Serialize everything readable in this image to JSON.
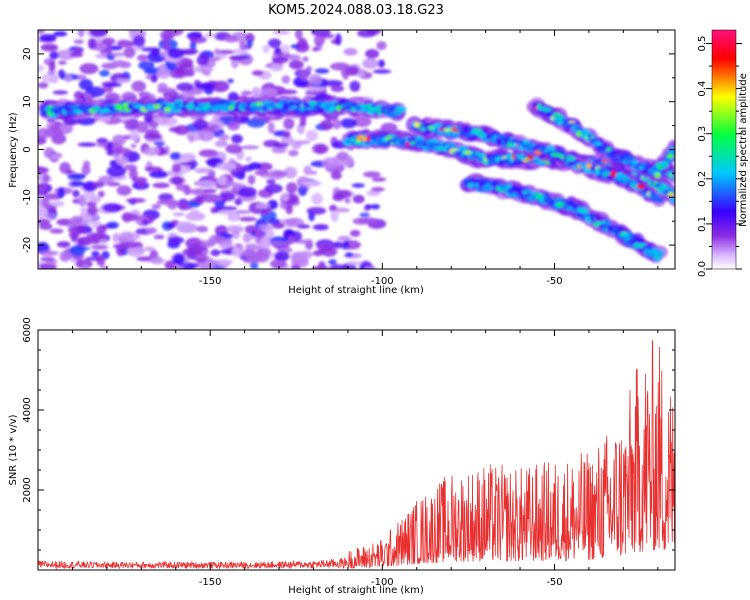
{
  "title": "KOM5.2024.088.03.18.G23",
  "chart_data": [
    {
      "type": "heatmap",
      "title": "KOM5.2024.088.03.18.G23",
      "xlabel": "Height of straight line (km)",
      "ylabel": "Frequency (Hz)",
      "xlim": [
        -200,
        -15
      ],
      "ylim": [
        -25,
        25
      ],
      "xticks": [
        "-150",
        "-100",
        "-50"
      ],
      "xtick_values": [
        -150,
        -100,
        -50
      ],
      "yticks": [
        "20",
        "10",
        "0",
        "-10",
        "-20"
      ],
      "ytick_values": [
        20,
        10,
        0,
        -10,
        -20
      ],
      "colorbar": {
        "label": "Normalized spectral amplitude",
        "ticks": [
          "0.0",
          "0.1",
          "0.2",
          "0.3",
          "0.4",
          "0.5"
        ],
        "tick_values": [
          0.0,
          0.1,
          0.2,
          0.3,
          0.4,
          0.5
        ],
        "range": [
          0.0,
          0.53
        ],
        "colors": [
          "#ffffff",
          "#d8b4ff",
          "#8a2be2",
          "#3a00ff",
          "#00c8ff",
          "#00ff40",
          "#ffff00",
          "#ff0000",
          "#ff1080"
        ]
      },
      "tracks": [
        {
          "x": [
            -198,
            -185,
            -165,
            -145,
            -125,
            -110,
            -100,
            -95
          ],
          "y": [
            8,
            8.5,
            9,
            9,
            9,
            9,
            8,
            8
          ],
          "peak": 0.35
        },
        {
          "x": [
            -110,
            -100,
            -90,
            -80,
            -70,
            -60,
            -50,
            -40,
            -30,
            -20,
            -15
          ],
          "y": [
            2,
            2,
            1.5,
            0,
            -2,
            -2,
            -2,
            -3,
            -3,
            -4,
            -5
          ],
          "peak": 0.53
        },
        {
          "x": [
            -90,
            -80,
            -70,
            -60,
            -50,
            -40,
            -30,
            -20
          ],
          "y": [
            5,
            4,
            3,
            1,
            -1,
            -4,
            -6,
            -10
          ],
          "peak": 0.48
        },
        {
          "x": [
            -75,
            -65,
            -55,
            -45,
            -35,
            -25,
            -20
          ],
          "y": [
            -7,
            -8,
            -10,
            -12,
            -16,
            -20,
            -22
          ],
          "peak": 0.3
        },
        {
          "x": [
            -55,
            -45,
            -35,
            -25,
            -15
          ],
          "y": [
            9,
            5,
            0,
            -5,
            -10
          ],
          "peak": 0.45
        },
        {
          "x": [
            -30,
            -20,
            -15
          ],
          "y": [
            -2,
            -5,
            0
          ],
          "peak": 0.35
        }
      ]
    },
    {
      "type": "line",
      "xlabel": "Height of straight line (km)",
      "ylabel": "SNR (10 * v/v)",
      "xlim": [
        -200,
        -15
      ],
      "ylim": [
        0,
        6000
      ],
      "xticks": [
        "-150",
        "-100",
        "-50"
      ],
      "xtick_values": [
        -150,
        -100,
        -50
      ],
      "yticks": [
        "6000",
        "4000",
        "2000"
      ],
      "ytick_values": [
        6000,
        4000,
        2000
      ],
      "color": "#e83030",
      "envelope": {
        "x": [
          -200,
          -180,
          -160,
          -140,
          -120,
          -110,
          -100,
          -90,
          -80,
          -70,
          -60,
          -50,
          -40,
          -30,
          -25,
          -20,
          -15
        ],
        "y": [
          350,
          300,
          300,
          300,
          350,
          500,
          800,
          1800,
          2500,
          2700,
          2600,
          2800,
          3000,
          4000,
          5500,
          6000,
          4500
        ]
      }
    }
  ]
}
